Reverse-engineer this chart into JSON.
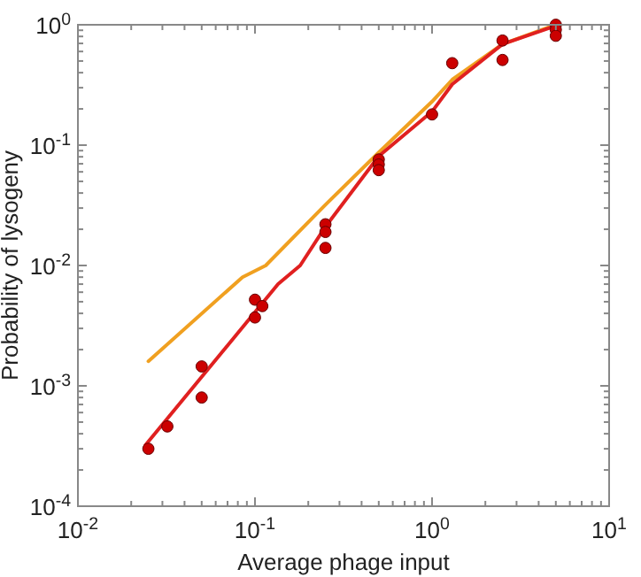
{
  "chart_data": {
    "type": "scatter",
    "xlabel": "Average phage input",
    "ylabel": "Probability of lysogeny",
    "log": "xy",
    "xlim": [
      0.01,
      10
    ],
    "ylim": [
      0.0001,
      1
    ],
    "xticks": [
      {
        "value": 0.01,
        "label": "10$^{-2}$"
      },
      {
        "value": 0.1,
        "label": "10$^{-1}$"
      },
      {
        "value": 1,
        "label": "10$^{0}$"
      },
      {
        "value": 10,
        "label": "10$^{1}$"
      }
    ],
    "yticks": [
      {
        "value": 0.0001,
        "label": "10$^{-4}$"
      },
      {
        "value": 0.001,
        "label": "10$^{-3}$"
      },
      {
        "value": 0.01,
        "label": "10$^{-2}$"
      },
      {
        "value": 0.1,
        "label": "10$^{-1}$"
      },
      {
        "value": 1,
        "label": "10$^{0}$"
      }
    ],
    "grid": false,
    "series": [
      {
        "type": "line",
        "color": "#f0a020",
        "marker": "none",
        "x": [
          0.025,
          0.085,
          0.115,
          0.25,
          0.5,
          1,
          1.3,
          2.5,
          5
        ],
        "values": [
          0.0016,
          0.008,
          0.01,
          0.032,
          0.087,
          0.23,
          0.35,
          0.69,
          1.0
        ]
      },
      {
        "type": "line",
        "color": "#e02020",
        "marker": "none",
        "x": [
          0.024,
          0.135,
          0.18,
          0.25,
          0.5,
          1,
          1.3,
          2.5,
          5
        ],
        "values": [
          0.00032,
          0.007,
          0.01,
          0.021,
          0.081,
          0.19,
          0.32,
          0.69,
          0.98
        ]
      },
      {
        "color": "#cc0000",
        "marker": "circle",
        "x": [
          0.025,
          0.032,
          0.05,
          0.05,
          0.1,
          0.1,
          0.11,
          0.25,
          0.25,
          0.25,
          0.5,
          0.5,
          0.5,
          1,
          1.3,
          2.5,
          2.5,
          5,
          5,
          5
        ],
        "values": [
          0.0003,
          0.00046,
          0.00145,
          0.0008,
          0.0052,
          0.0037,
          0.0046,
          0.022,
          0.019,
          0.014,
          0.076,
          0.069,
          0.062,
          0.18,
          0.48,
          0.74,
          0.51,
          1.0,
          0.91,
          0.81
        ]
      }
    ]
  }
}
